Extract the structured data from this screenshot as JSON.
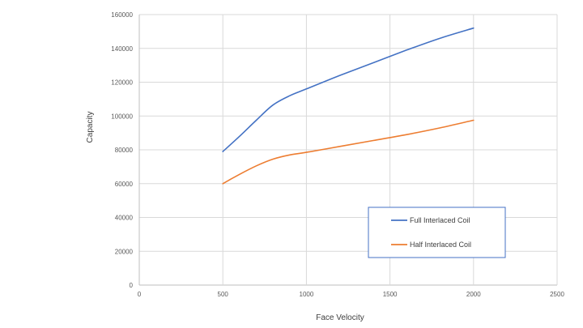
{
  "chart_data": {
    "type": "line",
    "title": "",
    "xlabel": "Face Velocity",
    "ylabel": "Capacity",
    "xlim": [
      0,
      2500
    ],
    "ylim": [
      0,
      160000
    ],
    "xticks": [
      0,
      500,
      1000,
      1500,
      2000,
      2500
    ],
    "yticks": [
      0,
      20000,
      40000,
      60000,
      80000,
      100000,
      120000,
      140000,
      160000
    ],
    "grid": true,
    "legend": "lower-right, boxed",
    "series": [
      {
        "name": "Full Interlaced Coil",
        "color": "#4472C4",
        "x": [
          500,
          600,
          700,
          800,
          900,
          1000,
          1200,
          1400,
          1600,
          1800,
          2000
        ],
        "y": [
          79000,
          88000,
          97500,
          106500,
          112000,
          116000,
          124000,
          131500,
          139000,
          146000,
          152000
        ]
      },
      {
        "name": "Half Interlaced Coil",
        "color": "#ED7D31",
        "x": [
          500,
          600,
          700,
          800,
          900,
          1000,
          1200,
          1400,
          1600,
          1800,
          2000
        ],
        "y": [
          60000,
          65500,
          70500,
          74500,
          77000,
          78500,
          82000,
          85500,
          89000,
          93000,
          97500
        ]
      }
    ]
  }
}
